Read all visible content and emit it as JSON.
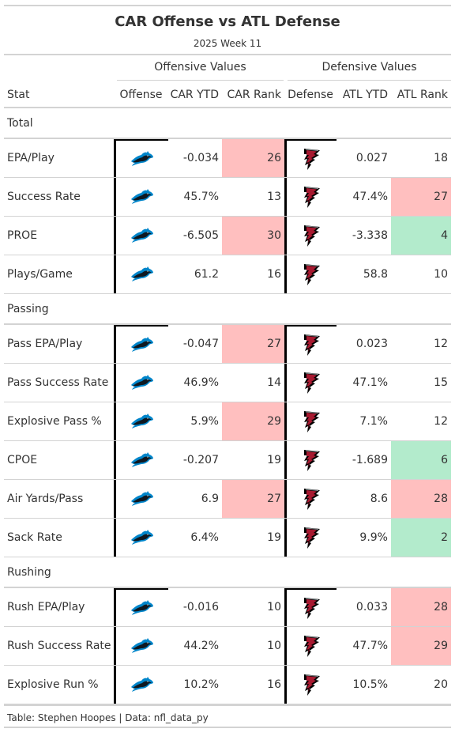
{
  "title": "CAR Offense vs ATL Defense",
  "subtitle": "2025 Week 11",
  "spanners": {
    "offense": "Offensive Values",
    "defense": "Defensive Values"
  },
  "columns": {
    "stat": "Stat",
    "offense": "Offense",
    "off_ytd": "CAR YTD",
    "off_rank": "CAR Rank",
    "defense": "Defense",
    "def_ytd": "ATL YTD",
    "def_rank": "ATL Rank"
  },
  "icons": {
    "offense": "panthers-logo-icon",
    "defense": "falcons-logo-icon"
  },
  "colors": {
    "bad_rank": "#ffbfbf",
    "good_rank": "#b3ebcc",
    "panther_blue": "#0085ca",
    "falcon_red": "#a71930"
  },
  "groups": [
    {
      "name": "Total",
      "rows": [
        {
          "stat": "EPA/Play",
          "off_ytd": "-0.034",
          "off_rank": "26",
          "off_hl": "bad",
          "def_ytd": "0.027",
          "def_rank": "18",
          "def_hl": ""
        },
        {
          "stat": "Success Rate",
          "off_ytd": "45.7%",
          "off_rank": "13",
          "off_hl": "",
          "def_ytd": "47.4%",
          "def_rank": "27",
          "def_hl": "bad"
        },
        {
          "stat": "PROE",
          "off_ytd": "-6.505",
          "off_rank": "30",
          "off_hl": "bad",
          "def_ytd": "-3.338",
          "def_rank": "4",
          "def_hl": "good"
        },
        {
          "stat": "Plays/Game",
          "off_ytd": "61.2",
          "off_rank": "16",
          "off_hl": "",
          "def_ytd": "58.8",
          "def_rank": "10",
          "def_hl": ""
        }
      ]
    },
    {
      "name": "Passing",
      "rows": [
        {
          "stat": "Pass EPA/Play",
          "off_ytd": "-0.047",
          "off_rank": "27",
          "off_hl": "bad",
          "def_ytd": "0.023",
          "def_rank": "12",
          "def_hl": ""
        },
        {
          "stat": "Pass Success Rate",
          "off_ytd": "46.9%",
          "off_rank": "14",
          "off_hl": "",
          "def_ytd": "47.1%",
          "def_rank": "15",
          "def_hl": ""
        },
        {
          "stat": "Explosive Pass %",
          "off_ytd": "5.9%",
          "off_rank": "29",
          "off_hl": "bad",
          "def_ytd": "7.1%",
          "def_rank": "12",
          "def_hl": ""
        },
        {
          "stat": "CPOE",
          "off_ytd": "-0.207",
          "off_rank": "19",
          "off_hl": "",
          "def_ytd": "-1.689",
          "def_rank": "6",
          "def_hl": "good"
        },
        {
          "stat": "Air Yards/Pass",
          "off_ytd": "6.9",
          "off_rank": "27",
          "off_hl": "bad",
          "def_ytd": "8.6",
          "def_rank": "28",
          "def_hl": "bad"
        },
        {
          "stat": "Sack Rate",
          "off_ytd": "6.4%",
          "off_rank": "19",
          "off_hl": "",
          "def_ytd": "9.9%",
          "def_rank": "2",
          "def_hl": "good"
        }
      ]
    },
    {
      "name": "Rushing",
      "rows": [
        {
          "stat": "Rush EPA/Play",
          "off_ytd": "-0.016",
          "off_rank": "10",
          "off_hl": "",
          "def_ytd": "0.033",
          "def_rank": "28",
          "def_hl": "bad"
        },
        {
          "stat": "Rush Success Rate",
          "off_ytd": "44.2%",
          "off_rank": "10",
          "off_hl": "",
          "def_ytd": "47.7%",
          "def_rank": "29",
          "def_hl": "bad"
        },
        {
          "stat": "Explosive Run %",
          "off_ytd": "10.2%",
          "off_rank": "16",
          "off_hl": "",
          "def_ytd": "10.5%",
          "def_rank": "20",
          "def_hl": ""
        }
      ]
    }
  ],
  "footer": "Table: Stephen Hoopes | Data: nfl_data_py"
}
